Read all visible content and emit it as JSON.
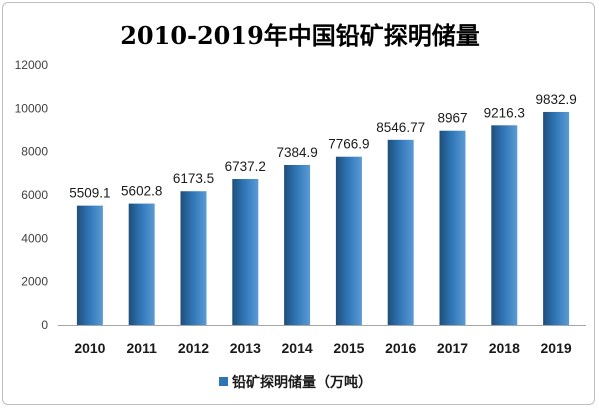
{
  "chart_data": {
    "type": "bar",
    "title": "2010-2019年中国铅矿探明储量",
    "categories": [
      "2010",
      "2011",
      "2012",
      "2013",
      "2014",
      "2015",
      "2016",
      "2017",
      "2018",
      "2019"
    ],
    "series": [
      {
        "name": "铅矿探明储量（万吨）",
        "values": [
          5509.1,
          5602.8,
          6173.5,
          6737.2,
          7384.9,
          7766.9,
          8546.77,
          8967,
          9216.3,
          9832.9
        ],
        "labels": [
          "5509.1",
          "5602.8",
          "6173.5",
          "6737.2",
          "7384.9",
          "7766.9",
          "8546.77",
          "8967",
          "9216.3",
          "9832.9"
        ]
      }
    ],
    "yticks": [
      "0",
      "2000",
      "4000",
      "6000",
      "8000",
      "10000",
      "12000"
    ],
    "ylim": [
      0,
      12000
    ],
    "xlabel": "",
    "ylabel": "",
    "grid": false,
    "legend_position": "bottom",
    "colors": {
      "bar": "#2e75b6",
      "bar_light": "#5b9bd5",
      "bar_dark": "#1f4e79",
      "axis": "#a6a6a6"
    }
  }
}
